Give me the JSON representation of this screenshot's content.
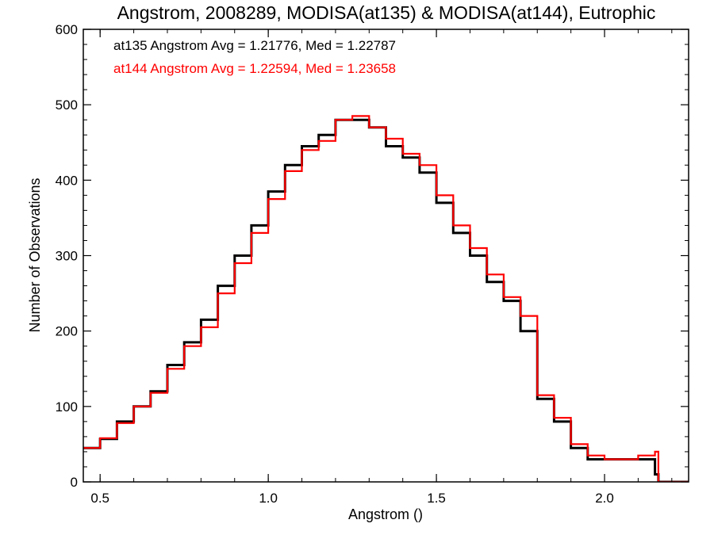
{
  "chart_data": {
    "type": "line",
    "title": "Angstrom, 2008289, MODISA(at135) & MODISA(at144), Eutrophic",
    "xlabel": "Angstrom ()",
    "ylabel": "Number of Observations",
    "xlim": [
      0.45,
      2.25
    ],
    "ylim": [
      0,
      600
    ],
    "x_ticks": [
      0.5,
      1.0,
      1.5,
      2.0
    ],
    "x_tick_labels": [
      "0.5",
      "1.0",
      "1.5",
      "2.0"
    ],
    "y_ticks": [
      0,
      100,
      200,
      300,
      400,
      500,
      600
    ],
    "y_tick_labels": [
      "0",
      "100",
      "200",
      "300",
      "400",
      "500",
      "600"
    ],
    "grid": false,
    "step_histogram": true,
    "annotations": [
      {
        "text": "at135 Angstrom Avg = 1.21776, Med = 1.22787",
        "color": "#000000"
      },
      {
        "text": "at144 Angstrom Avg = 1.22594, Med = 1.23658",
        "color": "#ff0000"
      }
    ],
    "series": [
      {
        "color": "#000000",
        "x": [
          0.45,
          0.5,
          0.55,
          0.6,
          0.65,
          0.7,
          0.75,
          0.8,
          0.85,
          0.9,
          0.95,
          1.0,
          1.05,
          1.1,
          1.15,
          1.2,
          1.25,
          1.3,
          1.35,
          1.4,
          1.45,
          1.5,
          1.55,
          1.6,
          1.65,
          1.7,
          1.75,
          1.8,
          1.85,
          1.9,
          1.95,
          2.0,
          2.05,
          2.1,
          2.15,
          2.16,
          2.25
        ],
        "y": [
          45,
          57,
          80,
          100,
          120,
          155,
          185,
          215,
          260,
          300,
          340,
          385,
          420,
          445,
          460,
          480,
          480,
          470,
          445,
          430,
          410,
          370,
          330,
          300,
          265,
          240,
          200,
          110,
          80,
          45,
          30,
          30,
          30,
          30,
          10,
          0,
          0
        ]
      },
      {
        "color": "#ff0000",
        "x": [
          0.45,
          0.5,
          0.55,
          0.6,
          0.65,
          0.7,
          0.75,
          0.8,
          0.85,
          0.9,
          0.95,
          1.0,
          1.05,
          1.1,
          1.15,
          1.2,
          1.25,
          1.3,
          1.35,
          1.4,
          1.45,
          1.5,
          1.55,
          1.6,
          1.65,
          1.7,
          1.75,
          1.8,
          1.85,
          1.9,
          1.95,
          2.0,
          2.05,
          2.1,
          2.15,
          2.16,
          2.25
        ],
        "y": [
          45,
          58,
          78,
          100,
          118,
          150,
          180,
          205,
          250,
          290,
          330,
          375,
          412,
          440,
          452,
          480,
          485,
          470,
          455,
          435,
          420,
          380,
          340,
          310,
          275,
          245,
          220,
          115,
          85,
          50,
          35,
          30,
          30,
          35,
          40,
          0,
          0
        ]
      }
    ]
  }
}
